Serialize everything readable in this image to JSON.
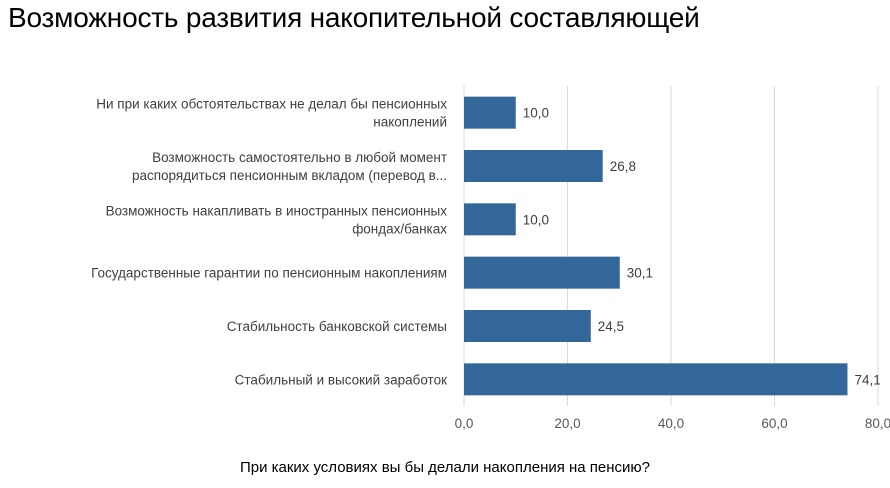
{
  "page": {
    "title": "Возможность развития накопительной составляющей"
  },
  "chart_data": {
    "type": "bar",
    "orientation": "horizontal",
    "title": "",
    "xlabel": "При каких условиях вы бы делали накопления на пенсию?",
    "ylabel": "",
    "xlim": [
      0,
      80
    ],
    "ticks": [
      "0,0",
      "20,0",
      "40,0",
      "60,0",
      "80,0"
    ],
    "tick_values": [
      0,
      20,
      40,
      60,
      80
    ],
    "grid": true,
    "legend": "none",
    "bar_color": "#336699",
    "categories": [
      [
        "Ни при каких обстоятельствах не делал бы пенсионных",
        "накоплений"
      ],
      [
        "Возможность самостоятельно в любой момент",
        "распорядиться пенсионным вкладом (перевод в..."
      ],
      [
        "Возможность накапливать в иностранных пенсионных",
        "фондах/банках"
      ],
      [
        "Государственные гарантии по пенсионным накоплениям"
      ],
      [
        "Стабильность банковской системы"
      ],
      [
        "Стабильный и высокий заработок"
      ]
    ],
    "values": [
      10.0,
      26.8,
      10.0,
      30.1,
      24.5,
      74.1
    ],
    "value_labels": [
      "10,0",
      "26,8",
      "10,0",
      "30,1",
      "24,5",
      "74,1"
    ]
  }
}
